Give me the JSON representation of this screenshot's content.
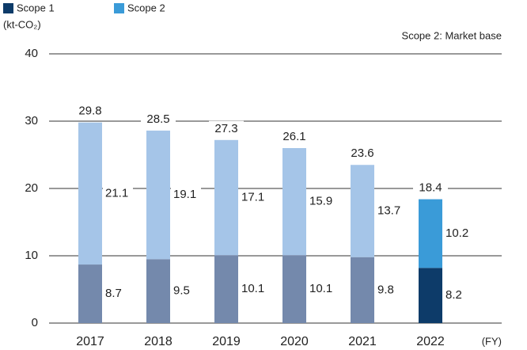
{
  "chart_data": {
    "type": "stacked_bar",
    "unit_label": "(kt-CO₂)",
    "note": "Scope 2: Market base",
    "x_unit_label": "(FY)",
    "categories": [
      "2017",
      "2018",
      "2019",
      "2020",
      "2021",
      "2022"
    ],
    "series": [
      {
        "name": "Scope 1",
        "color": "#0d3b69",
        "point_colors": [
          "#7489ac",
          "#7489ac",
          "#7489ac",
          "#7489ac",
          "#7489ac",
          "#0d3b69"
        ],
        "values": [
          8.7,
          9.5,
          10.1,
          10.1,
          9.8,
          8.2
        ]
      },
      {
        "name": "Scope 2",
        "color": "#3a9bd8",
        "point_colors": [
          "#a5c5e8",
          "#a5c5e8",
          "#a5c5e8",
          "#a5c5e8",
          "#a5c5e8",
          "#3a9bd8"
        ],
        "values": [
          21.1,
          19.1,
          17.1,
          15.9,
          13.7,
          10.2
        ]
      }
    ],
    "totals": [
      29.8,
      28.5,
      27.3,
      26.1,
      23.6,
      18.4
    ],
    "ylim": [
      0,
      40
    ],
    "yticks": [
      0,
      10,
      20,
      30,
      40
    ],
    "grid": true
  }
}
